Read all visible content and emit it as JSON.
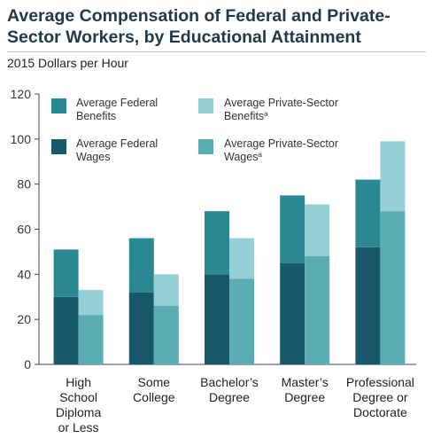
{
  "title_lines": [
    "Average Compensation of Federal and Private-",
    "Sector Workers, by Educational Attainment"
  ],
  "subtitle": "2015 Dollars per Hour",
  "colors": {
    "federal_wages": "#17596b",
    "federal_benefits": "#2a8894",
    "private_wages": "#5aadb2",
    "private_benefits": "#93cfd4",
    "axis": "#444444",
    "text": "#333333"
  },
  "legend": [
    {
      "key": "federal_benefits",
      "lines": [
        "Average Federal",
        "Benefits"
      ],
      "sup": ""
    },
    {
      "key": "private_benefits",
      "lines": [
        "Average Private-Sector",
        "Benefits"
      ],
      "sup": "a"
    },
    {
      "key": "federal_wages",
      "lines": [
        "Average Federal",
        "Wages"
      ],
      "sup": ""
    },
    {
      "key": "private_wages",
      "lines": [
        "Average Private-Sector",
        "Wages"
      ],
      "sup": "a"
    }
  ],
  "chart_data": {
    "type": "bar",
    "stacked": true,
    "title": "Average Compensation of Federal and Private-Sector Workers, by Educational Attainment",
    "ylabel": "2015 Dollars per Hour",
    "ylim": [
      0,
      120
    ],
    "yticks": [
      0,
      20,
      40,
      60,
      80,
      100,
      120
    ],
    "grid": false,
    "legend_position": "top-left",
    "categories": [
      [
        "High",
        "School",
        "Diploma",
        "or Less"
      ],
      [
        "Some",
        "College"
      ],
      [
        "Bachelor’s",
        "Degree"
      ],
      [
        "Master’s",
        "Degree"
      ],
      [
        "Professional",
        "Degree or",
        "Doctorate"
      ]
    ],
    "series": [
      {
        "name": "Average Federal Wages",
        "group": "federal",
        "values": [
          30,
          32,
          40,
          45,
          52
        ]
      },
      {
        "name": "Average Federal Benefits",
        "group": "federal",
        "values": [
          21,
          24,
          28,
          30,
          30
        ]
      },
      {
        "name": "Average Private-Sector Wages",
        "group": "private",
        "values": [
          22,
          26,
          38,
          48,
          68
        ]
      },
      {
        "name": "Average Private-Sector Benefits",
        "group": "private",
        "values": [
          11,
          14,
          18,
          23,
          31
        ]
      }
    ]
  }
}
